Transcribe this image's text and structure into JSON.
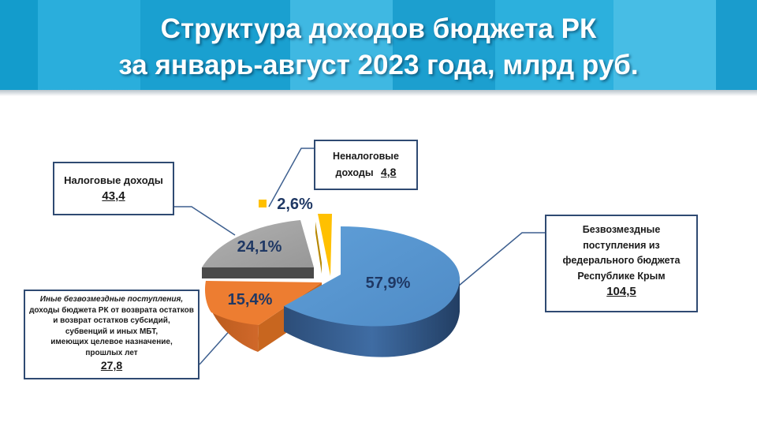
{
  "title": {
    "line1": "Структура доходов бюджета РК",
    "line2": "за январь-август 2023 года, млрд руб."
  },
  "colors": {
    "header": "#1da3d3",
    "federal": "#5b9bd5",
    "other": "#ed7d31",
    "tax": "#a5a5a5",
    "nontax": "#ffc000",
    "border": "#2f4a72"
  },
  "chart_data": {
    "type": "pie",
    "style": "3d-exploded",
    "slices": [
      {
        "key": "federal",
        "value": 104.5,
        "percent_label": "57,9%"
      },
      {
        "key": "other",
        "value": 27.8,
        "percent_label": "15,4%"
      },
      {
        "key": "tax",
        "value": 43.4,
        "percent_label": "24,1%"
      },
      {
        "key": "nontax",
        "value": 4.8,
        "percent_label": "2,6%"
      }
    ]
  },
  "callouts": {
    "tax": {
      "label": "Налоговые доходы",
      "value": "43,4"
    },
    "nontax": {
      "label_line1": "Неналоговые",
      "label_line2": "доходы",
      "value": "4,8"
    },
    "federal": {
      "lines": [
        "Безвозмездные",
        "поступления  из",
        "федерального бюджета",
        "Республике Крым"
      ],
      "value": "104,5"
    },
    "other": {
      "lines": [
        "Иные безвозмездные поступления,",
        "доходы бюджета РК от возврата остатков",
        "и возврат остатков субсидий,",
        "субвенций и иных МБТ,",
        "имеющих  целевое назначение,",
        "прошлых лет"
      ],
      "value": "27,8"
    }
  }
}
